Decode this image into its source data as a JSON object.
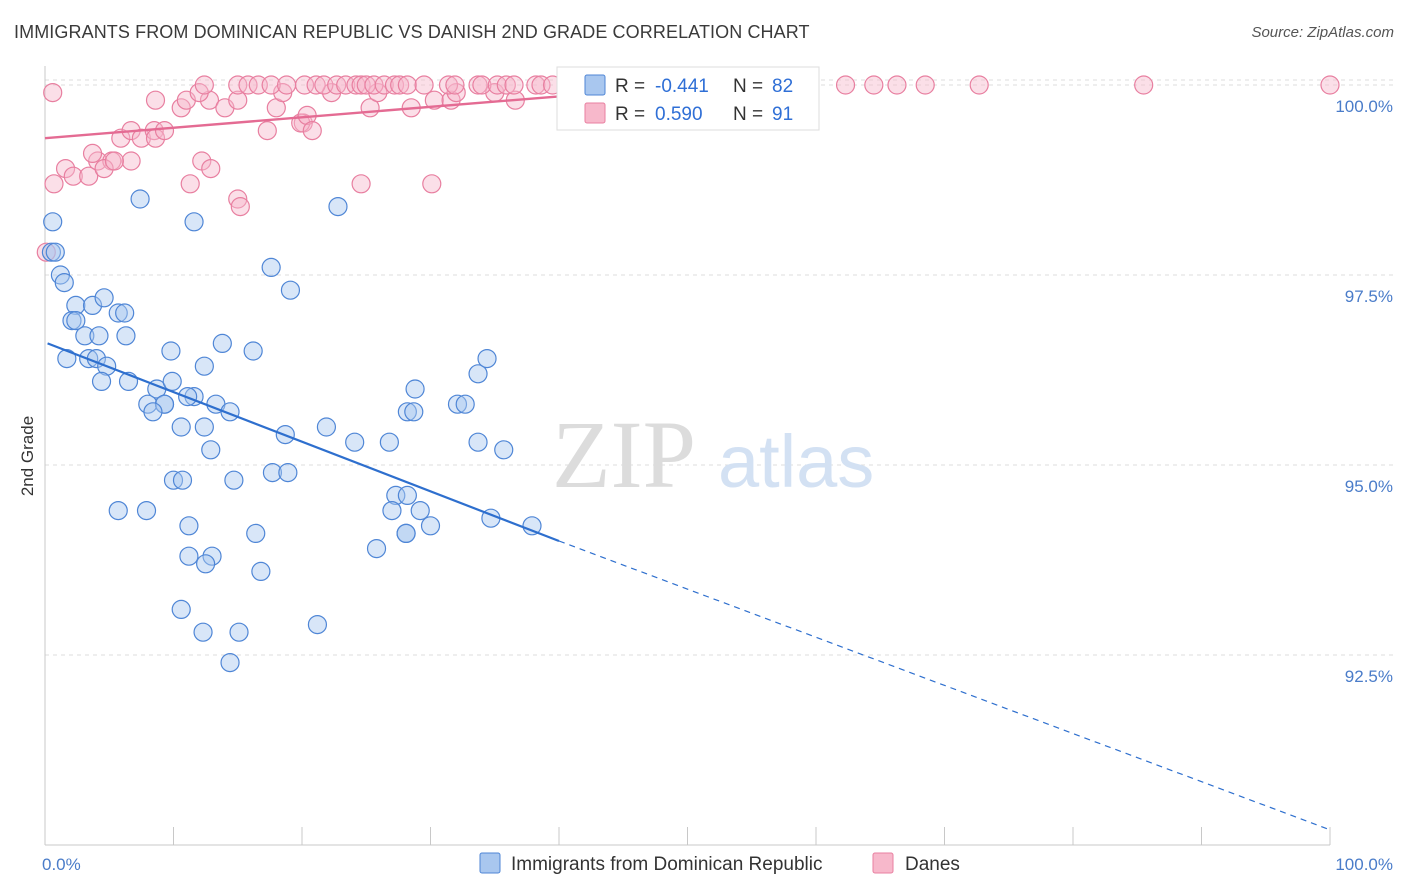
{
  "title": "IMMIGRANTS FROM DOMINICAN REPUBLIC VS DANISH 2ND GRADE CORRELATION CHART",
  "source": "Source: ZipAtlas.com",
  "watermark": {
    "zip": "ZIP",
    "atlas": "atlas"
  },
  "colors": {
    "blue_fill": "#a9c7ef",
    "blue_stroke": "#4f86d6",
    "blue_line": "#2e6fce",
    "pink_fill": "#f7b8cb",
    "pink_stroke": "#e87fa0",
    "pink_line": "#e46b93",
    "tick_text": "#4a7cc9",
    "grid": "#dddddd"
  },
  "legend": {
    "rows": [
      {
        "r_label": "R =",
        "r_value": "-0.441",
        "n_label": "N =",
        "n_value": "82"
      },
      {
        "r_label": "R =",
        "r_value": "0.590",
        "n_label": "N =",
        "n_value": "91"
      }
    ]
  },
  "chart_data": {
    "type": "scatter",
    "title": "IMMIGRANTS FROM DOMINICAN REPUBLIC VS DANISH 2ND GRADE CORRELATION CHART",
    "xlabel": "",
    "ylabel": "2nd Grade",
    "xlim": [
      0,
      100
    ],
    "ylim": [
      90.0,
      100.25
    ],
    "x_tick_labels": [
      "0.0%",
      "100.0%"
    ],
    "y_ticks": [
      92.5,
      95.0,
      97.5,
      100.0
    ],
    "y_tick_labels": [
      "92.5%",
      "95.0%",
      "97.5%",
      "100.0%"
    ],
    "grid": true,
    "series": [
      {
        "name": "Immigrants from Dominican Republic",
        "color": "blue",
        "R": -0.441,
        "N": 82,
        "trend": {
          "x0": 0.2,
          "y0": 96.6,
          "x1": 40,
          "y1": 94.0,
          "dash_x1": 100,
          "dash_y1": 90.2
        },
        "points": [
          [
            0.5,
            97.8
          ],
          [
            0.6,
            98.2
          ],
          [
            0.8,
            97.8
          ],
          [
            1.2,
            97.5
          ],
          [
            1.5,
            97.4
          ],
          [
            2.4,
            97.1
          ],
          [
            3.7,
            97.1
          ],
          [
            4.6,
            97.2
          ],
          [
            5.7,
            97.0
          ],
          [
            6.2,
            97.0
          ],
          [
            2.1,
            96.9
          ],
          [
            2.4,
            96.9
          ],
          [
            3.1,
            96.7
          ],
          [
            4.2,
            96.7
          ],
          [
            6.3,
            96.7
          ],
          [
            1.7,
            96.4
          ],
          [
            3.4,
            96.4
          ],
          [
            4.0,
            96.4
          ],
          [
            4.8,
            96.3
          ],
          [
            9.8,
            96.5
          ],
          [
            12.4,
            96.3
          ],
          [
            13.8,
            96.6
          ],
          [
            16.2,
            96.5
          ],
          [
            6.5,
            96.1
          ],
          [
            4.4,
            96.1
          ],
          [
            8.7,
            96.0
          ],
          [
            9.9,
            96.1
          ],
          [
            11.6,
            95.9
          ],
          [
            8.0,
            95.8
          ],
          [
            9.3,
            95.8
          ],
          [
            9.3,
            95.8
          ],
          [
            11.1,
            95.9
          ],
          [
            8.4,
            95.7
          ],
          [
            13.3,
            95.8
          ],
          [
            14.4,
            95.7
          ],
          [
            10.6,
            95.5
          ],
          [
            12.4,
            95.5
          ],
          [
            18.7,
            95.4
          ],
          [
            21.9,
            95.5
          ],
          [
            24.1,
            95.3
          ],
          [
            28.8,
            96.0
          ],
          [
            33.7,
            96.2
          ],
          [
            34.4,
            96.4
          ],
          [
            28.2,
            95.7
          ],
          [
            28.7,
            95.7
          ],
          [
            32.1,
            95.8
          ],
          [
            32.7,
            95.8
          ],
          [
            26.8,
            95.3
          ],
          [
            33.7,
            95.3
          ],
          [
            12.9,
            95.2
          ],
          [
            35.7,
            95.2
          ],
          [
            10.0,
            94.8
          ],
          [
            10.7,
            94.8
          ],
          [
            14.7,
            94.8
          ],
          [
            17.7,
            94.9
          ],
          [
            18.9,
            94.9
          ],
          [
            27.3,
            94.6
          ],
          [
            28.2,
            94.6
          ],
          [
            27.0,
            94.4
          ],
          [
            29.2,
            94.4
          ],
          [
            34.7,
            94.3
          ],
          [
            37.9,
            94.2
          ],
          [
            5.7,
            94.4
          ],
          [
            7.9,
            94.4
          ],
          [
            11.2,
            94.2
          ],
          [
            16.4,
            94.1
          ],
          [
            28.1,
            94.1
          ],
          [
            28.1,
            94.1
          ],
          [
            30.0,
            94.2
          ],
          [
            11.2,
            93.8
          ],
          [
            13.0,
            93.8
          ],
          [
            12.5,
            93.7
          ],
          [
            16.8,
            93.6
          ],
          [
            25.8,
            93.9
          ],
          [
            10.6,
            93.1
          ],
          [
            12.3,
            92.8
          ],
          [
            15.1,
            92.8
          ],
          [
            21.2,
            92.9
          ],
          [
            14.4,
            92.4
          ],
          [
            7.4,
            98.5
          ],
          [
            11.6,
            98.2
          ],
          [
            22.8,
            98.4
          ],
          [
            17.6,
            97.6
          ],
          [
            19.1,
            97.3
          ]
        ]
      },
      {
        "name": "Danes",
        "color": "pink",
        "R": 0.59,
        "N": 91,
        "trend": {
          "x0": 0,
          "y0": 99.3,
          "x1": 40,
          "y1": 99.85
        },
        "points": [
          [
            0.1,
            97.8
          ],
          [
            0.7,
            98.7
          ],
          [
            1.6,
            98.9
          ],
          [
            2.2,
            98.8
          ],
          [
            3.4,
            98.8
          ],
          [
            4.1,
            99.0
          ],
          [
            3.7,
            99.1
          ],
          [
            5.2,
            99.0
          ],
          [
            4.6,
            98.9
          ],
          [
            6.7,
            99.0
          ],
          [
            5.4,
            99.0
          ],
          [
            5.9,
            99.3
          ],
          [
            6.7,
            99.4
          ],
          [
            7.5,
            99.3
          ],
          [
            8.5,
            99.4
          ],
          [
            8.6,
            99.3
          ],
          [
            9.3,
            99.4
          ],
          [
            11.3,
            98.7
          ],
          [
            12.2,
            99.0
          ],
          [
            12.9,
            98.9
          ],
          [
            15.0,
            98.5
          ],
          [
            15.2,
            98.4
          ],
          [
            10.6,
            99.7
          ],
          [
            11.0,
            99.8
          ],
          [
            12.8,
            99.8
          ],
          [
            14.0,
            99.7
          ],
          [
            15.0,
            99.8
          ],
          [
            17.3,
            99.4
          ],
          [
            18.0,
            99.7
          ],
          [
            18.5,
            99.9
          ],
          [
            20.1,
            99.5
          ],
          [
            19.9,
            99.5
          ],
          [
            20.4,
            99.6
          ],
          [
            20.8,
            99.4
          ],
          [
            22.3,
            99.9
          ],
          [
            25.3,
            99.7
          ],
          [
            25.9,
            99.9
          ],
          [
            28.5,
            99.7
          ],
          [
            30.3,
            99.8
          ],
          [
            31.6,
            99.8
          ],
          [
            32.0,
            99.9
          ],
          [
            35.0,
            99.9
          ],
          [
            36.6,
            99.8
          ],
          [
            8.6,
            99.8
          ],
          [
            24.6,
            98.7
          ],
          [
            30.1,
            98.7
          ],
          [
            0.6,
            99.9
          ],
          [
            12.0,
            99.9
          ],
          [
            12.4,
            100.0
          ],
          [
            15.0,
            100.0
          ],
          [
            15.8,
            100.0
          ],
          [
            16.6,
            100.0
          ],
          [
            17.6,
            100.0
          ],
          [
            18.8,
            100.0
          ],
          [
            20.2,
            100.0
          ],
          [
            21.1,
            100.0
          ],
          [
            21.7,
            100.0
          ],
          [
            22.7,
            100.0
          ],
          [
            23.4,
            100.0
          ],
          [
            24.2,
            100.0
          ],
          [
            24.6,
            100.0
          ],
          [
            25.0,
            100.0
          ],
          [
            25.6,
            100.0
          ],
          [
            26.4,
            100.0
          ],
          [
            27.2,
            100.0
          ],
          [
            27.6,
            100.0
          ],
          [
            28.2,
            100.0
          ],
          [
            29.5,
            100.0
          ],
          [
            31.4,
            100.0
          ],
          [
            31.9,
            100.0
          ],
          [
            33.7,
            100.0
          ],
          [
            34.0,
            100.0
          ],
          [
            35.2,
            100.0
          ],
          [
            35.9,
            100.0
          ],
          [
            36.5,
            100.0
          ],
          [
            38.2,
            100.0
          ],
          [
            38.6,
            100.0
          ],
          [
            39.5,
            100.0
          ],
          [
            43.0,
            100.0
          ],
          [
            45.0,
            100.0
          ],
          [
            48.0,
            100.0
          ],
          [
            51.0,
            100.0
          ],
          [
            54.0,
            100.0
          ],
          [
            58.0,
            100.0
          ],
          [
            62.3,
            100.0
          ],
          [
            64.5,
            100.0
          ],
          [
            66.3,
            100.0
          ],
          [
            68.5,
            100.0
          ],
          [
            72.7,
            100.0
          ],
          [
            85.5,
            100.0
          ],
          [
            100.0,
            100.0
          ]
        ]
      }
    ],
    "legend_entries": [
      "Immigrants from Dominican Republic",
      "Danes"
    ]
  }
}
